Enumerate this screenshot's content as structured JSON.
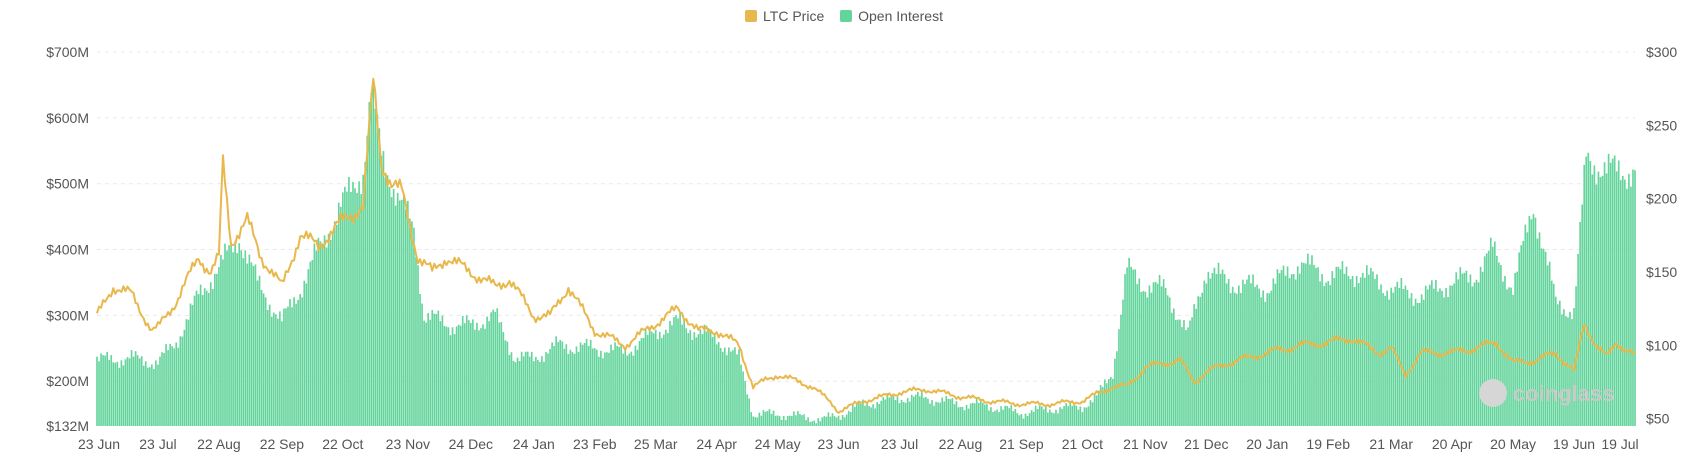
{
  "chart_data": {
    "type": "bar+line",
    "series": [
      {
        "name": "Open Interest",
        "type": "bar",
        "axis": "left",
        "color": "#63d49b",
        "keypoints": [
          [
            "2022-06-23",
            232
          ],
          [
            "2022-07-10",
            235
          ],
          [
            "2022-07-23",
            228
          ],
          [
            "2022-08-01",
            260
          ],
          [
            "2022-08-12",
            330
          ],
          [
            "2022-08-22",
            372
          ],
          [
            "2022-09-01",
            420
          ],
          [
            "2022-09-10",
            350
          ],
          [
            "2022-09-22",
            290
          ],
          [
            "2022-10-01",
            340
          ],
          [
            "2022-10-10",
            400
          ],
          [
            "2022-10-22",
            470
          ],
          [
            "2022-11-01",
            520
          ],
          [
            "2022-11-05",
            640
          ],
          [
            "2022-11-10",
            545
          ],
          [
            "2022-11-18",
            480
          ],
          [
            "2022-11-26",
            430
          ],
          [
            "2022-12-01",
            300
          ],
          [
            "2022-12-15",
            285
          ],
          [
            "2022-12-24",
            285
          ],
          [
            "2023-01-05",
            300
          ],
          [
            "2023-01-15",
            235
          ],
          [
            "2023-01-24",
            235
          ],
          [
            "2023-02-05",
            255
          ],
          [
            "2023-02-23",
            250
          ],
          [
            "2023-03-10",
            245
          ],
          [
            "2023-03-25",
            275
          ],
          [
            "2023-04-05",
            290
          ],
          [
            "2023-04-15",
            275
          ],
          [
            "2023-04-24",
            265
          ],
          [
            "2023-05-05",
            235
          ],
          [
            "2023-05-12",
            150
          ],
          [
            "2023-05-24",
            150
          ],
          [
            "2023-06-05",
            146
          ],
          [
            "2023-06-15",
            142
          ],
          [
            "2023-06-23",
            148
          ],
          [
            "2023-07-05",
            165
          ],
          [
            "2023-07-23",
            175
          ],
          [
            "2023-08-05",
            175
          ],
          [
            "2023-08-22",
            165
          ],
          [
            "2023-09-01",
            165
          ],
          [
            "2023-09-21",
            152
          ],
          [
            "2023-10-05",
            158
          ],
          [
            "2023-10-21",
            162
          ],
          [
            "2023-10-28",
            175
          ],
          [
            "2023-11-05",
            215
          ],
          [
            "2023-11-12",
            370
          ],
          [
            "2023-11-21",
            345
          ],
          [
            "2023-12-01",
            340
          ],
          [
            "2023-12-12",
            270
          ],
          [
            "2023-12-21",
            370
          ],
          [
            "2024-01-01",
            350
          ],
          [
            "2024-01-20",
            340
          ],
          [
            "2024-02-05",
            380
          ],
          [
            "2024-02-19",
            360
          ],
          [
            "2024-03-05",
            365
          ],
          [
            "2024-03-21",
            340
          ],
          [
            "2024-04-05",
            330
          ],
          [
            "2024-04-20",
            350
          ],
          [
            "2024-05-01",
            360
          ],
          [
            "2024-05-10",
            400
          ],
          [
            "2024-05-20",
            340
          ],
          [
            "2024-05-30",
            470
          ],
          [
            "2024-06-10",
            320
          ],
          [
            "2024-06-19",
            305
          ],
          [
            "2024-06-25",
            540
          ],
          [
            "2024-07-05",
            520
          ],
          [
            "2024-07-19",
            520
          ]
        ]
      },
      {
        "name": "LTC Price",
        "type": "line",
        "axis": "right",
        "color": "#e9b84c",
        "keypoints": [
          [
            "2022-06-23",
            120
          ],
          [
            "2022-07-01",
            140
          ],
          [
            "2022-07-10",
            135
          ],
          [
            "2022-07-20",
            110
          ],
          [
            "2022-07-23",
            112
          ],
          [
            "2022-08-01",
            130
          ],
          [
            "2022-08-12",
            160
          ],
          [
            "2022-08-18",
            150
          ],
          [
            "2022-08-22",
            160
          ],
          [
            "2022-08-24",
            225
          ],
          [
            "2022-08-28",
            170
          ],
          [
            "2022-09-05",
            185
          ],
          [
            "2022-09-12",
            160
          ],
          [
            "2022-09-22",
            140
          ],
          [
            "2022-10-01",
            175
          ],
          [
            "2022-10-10",
            168
          ],
          [
            "2022-10-22",
            185
          ],
          [
            "2022-11-01",
            195
          ],
          [
            "2022-11-06",
            280
          ],
          [
            "2022-11-10",
            225
          ],
          [
            "2022-11-15",
            210
          ],
          [
            "2022-11-20",
            205
          ],
          [
            "2022-11-28",
            160
          ],
          [
            "2022-12-05",
            150
          ],
          [
            "2022-12-12",
            160
          ],
          [
            "2022-12-24",
            150
          ],
          [
            "2023-01-05",
            140
          ],
          [
            "2023-01-12",
            145
          ],
          [
            "2023-01-24",
            120
          ],
          [
            "2023-02-01",
            120
          ],
          [
            "2023-02-10",
            140
          ],
          [
            "2023-02-23",
            110
          ],
          [
            "2023-03-10",
            100
          ],
          [
            "2023-03-25",
            115
          ],
          [
            "2023-04-05",
            125
          ],
          [
            "2023-04-15",
            110
          ],
          [
            "2023-04-24",
            110
          ],
          [
            "2023-05-05",
            100
          ],
          [
            "2023-05-12",
            72
          ],
          [
            "2023-05-24",
            80
          ],
          [
            "2023-06-10",
            72
          ],
          [
            "2023-06-20",
            60
          ],
          [
            "2023-06-23",
            55
          ],
          [
            "2023-07-05",
            62
          ],
          [
            "2023-07-15",
            65
          ],
          [
            "2023-07-23",
            68
          ],
          [
            "2023-08-05",
            70
          ],
          [
            "2023-08-22",
            65
          ],
          [
            "2023-09-05",
            62
          ],
          [
            "2023-09-21",
            60
          ],
          [
            "2023-10-05",
            60
          ],
          [
            "2023-10-21",
            62
          ],
          [
            "2023-10-30",
            68
          ],
          [
            "2023-11-05",
            72
          ],
          [
            "2023-11-12",
            72
          ],
          [
            "2023-11-21",
            85
          ],
          [
            "2023-12-01",
            88
          ],
          [
            "2023-12-08",
            90
          ],
          [
            "2023-12-15",
            75
          ],
          [
            "2023-12-21",
            82
          ],
          [
            "2024-01-01",
            88
          ],
          [
            "2024-01-20",
            95
          ],
          [
            "2024-02-05",
            100
          ],
          [
            "2024-02-19",
            102
          ],
          [
            "2024-03-01",
            105
          ],
          [
            "2024-03-15",
            95
          ],
          [
            "2024-03-21",
            98
          ],
          [
            "2024-03-28",
            80
          ],
          [
            "2024-04-05",
            95
          ],
          [
            "2024-04-20",
            95
          ],
          [
            "2024-05-01",
            98
          ],
          [
            "2024-05-12",
            102
          ],
          [
            "2024-05-20",
            88
          ],
          [
            "2024-06-01",
            90
          ],
          [
            "2024-06-10",
            95
          ],
          [
            "2024-06-19",
            82
          ],
          [
            "2024-06-24",
            115
          ],
          [
            "2024-06-30",
            100
          ],
          [
            "2024-07-05",
            92
          ],
          [
            "2024-07-10",
            102
          ],
          [
            "2024-07-19",
            93
          ]
        ]
      }
    ],
    "x_axis": {
      "range": [
        "2022-06-23",
        "2024-07-19"
      ],
      "ticks": [
        {
          "date": "2022-06-23",
          "label": "23 Jun"
        },
        {
          "date": "2022-07-23",
          "label": "23 Jul"
        },
        {
          "date": "2022-08-22",
          "label": "22 Aug"
        },
        {
          "date": "2022-09-22",
          "label": "22 Sep"
        },
        {
          "date": "2022-10-22",
          "label": "22 Oct"
        },
        {
          "date": "2022-11-23",
          "label": "23 Nov"
        },
        {
          "date": "2022-12-24",
          "label": "24 Dec"
        },
        {
          "date": "2023-01-24",
          "label": "24 Jan"
        },
        {
          "date": "2023-02-23",
          "label": "23 Feb"
        },
        {
          "date": "2023-03-25",
          "label": "25 Mar"
        },
        {
          "date": "2023-04-24",
          "label": "24 Apr"
        },
        {
          "date": "2023-05-24",
          "label": "24 May"
        },
        {
          "date": "2023-06-23",
          "label": "23 Jun"
        },
        {
          "date": "2023-07-23",
          "label": "23 Jul"
        },
        {
          "date": "2023-08-22",
          "label": "22 Aug"
        },
        {
          "date": "2023-09-21",
          "label": "21 Sep"
        },
        {
          "date": "2023-10-21",
          "label": "21 Oct"
        },
        {
          "date": "2023-11-21",
          "label": "21 Nov"
        },
        {
          "date": "2023-12-21",
          "label": "21 Dec"
        },
        {
          "date": "2024-01-20",
          "label": "20 Jan"
        },
        {
          "date": "2024-02-19",
          "label": "19 Feb"
        },
        {
          "date": "2024-03-21",
          "label": "21 Mar"
        },
        {
          "date": "2024-04-20",
          "label": "20 Apr"
        },
        {
          "date": "2024-05-20",
          "label": "20 May"
        },
        {
          "date": "2024-06-19",
          "label": "19 Jun"
        },
        {
          "date": "2024-07-19",
          "label": "19 Jul"
        }
      ]
    },
    "y_left": {
      "range": [
        132,
        700
      ],
      "ticks": [
        {
          "value": 132,
          "label": "$132M"
        },
        {
          "value": 200,
          "label": "$200M"
        },
        {
          "value": 300,
          "label": "$300M"
        },
        {
          "value": 400,
          "label": "$400M"
        },
        {
          "value": 500,
          "label": "$500M"
        },
        {
          "value": 600,
          "label": "$600M"
        },
        {
          "value": 700,
          "label": "$700M"
        }
      ]
    },
    "y_right": {
      "range": [
        45,
        300
      ],
      "ticks": [
        {
          "value": 50,
          "label": "$50"
        },
        {
          "value": 100,
          "label": "$100"
        },
        {
          "value": 150,
          "label": "$150"
        },
        {
          "value": 200,
          "label": "$200"
        },
        {
          "value": 250,
          "label": "$250"
        },
        {
          "value": 300,
          "label": "$300"
        }
      ]
    },
    "grid": true,
    "legend_position": "top-center",
    "watermark": "coinglass"
  }
}
